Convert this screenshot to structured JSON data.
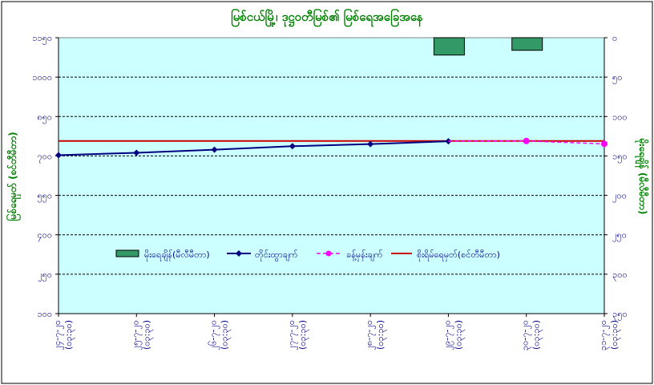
{
  "chart_data": {
    "type": "line",
    "title": "မြစ်ငယ်မြို့၊ ဒုဋ္ဌဝတီမြစ်၏ မြစ်ရေအခြေအနေ",
    "ylabel": "မြစ်ရေမှတ် (စင်တီမီတာ)",
    "y2label": "မိုးရေချိန် (မီလီမီတာ)",
    "ylim": [
      100,
      1150
    ],
    "y_ticks": [
      "၁၀၀",
      "၂၅၀",
      "၄၀၀",
      "၅၅၀",
      "၇၀၀",
      "၈၅၀",
      "၁၀၀၀",
      "၁၁၅၀"
    ],
    "y_tick_values": [
      100,
      250,
      400,
      550,
      700,
      850,
      1000,
      1150
    ],
    "y2lim": [
      0,
      350
    ],
    "y2_ticks": [
      "၀",
      "၅၀",
      "၁၀၀",
      "၁၅၀",
      "၂၀၀",
      "၂၅၀",
      "၃၀၀",
      "၃၅၀"
    ],
    "y2_tick_values": [
      0,
      50,
      100,
      150,
      200,
      250,
      300,
      350
    ],
    "categories": [
      "၂၄-၇-၂၀",
      "၂၅-၇-၂၀",
      "၂၆-၇-၂၀",
      "၂၇-၇-၂၀",
      "၂၈-၇-၂၀",
      "၂၉-၇-၂၀",
      "၃၀-၇-၂၀",
      "၃၁-၇-၂၀"
    ],
    "category_times": [
      "(၀၃:၃၀)",
      "(၀၃:၃၀)",
      "(၀၃:၃၀)",
      "(၀၃:၃၀)",
      "(၀၃:၃၀)",
      "(၀၃:၃၀)",
      "(၀၃:၃၀)",
      "(၀၃:၃၀)"
    ],
    "series": [
      {
        "name": "မိုးရေချိန်(မီလီမီတာ)",
        "kind": "bar",
        "axis": "right",
        "color": "#339966",
        "values": [
          null,
          null,
          null,
          null,
          null,
          22,
          16,
          null
        ]
      },
      {
        "name": "တိုင်းထွာချက်",
        "kind": "line",
        "axis": "left",
        "color": "#000080",
        "values": [
          703,
          712,
          724,
          737,
          745,
          756,
          null,
          null
        ]
      },
      {
        "name": "ခန့်မှန်းချက်",
        "kind": "line-dashed",
        "axis": "left",
        "color": "#ff00ff",
        "values": [
          null,
          null,
          null,
          null,
          null,
          756,
          757,
          746
        ]
      },
      {
        "name": "စိုးရိမ်ရေမှတ်(စင်တီမီတာ)",
        "kind": "hline",
        "axis": "left",
        "color": "#cc0000",
        "value": 757
      }
    ],
    "grid": true,
    "legend": "bottom-center"
  },
  "colors": {
    "plot_bg": "#ccffff",
    "border": "#000000",
    "title": "#008000",
    "ticks": "#00008b"
  }
}
